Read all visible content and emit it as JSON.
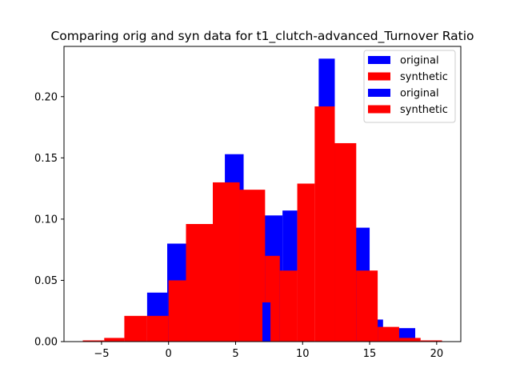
{
  "chart_data": {
    "type": "bar",
    "title": "Comparing orig and syn data for t1_clutch-advanced_Turnover Ratio",
    "xlabel": "",
    "ylabel": "",
    "xlim": [
      -7.8,
      21.8
    ],
    "ylim": [
      0,
      0.241
    ],
    "xticks": [
      -5,
      0,
      5,
      10,
      15,
      20
    ],
    "yticks": [
      0.0,
      0.05,
      0.1,
      0.15,
      0.2
    ],
    "ytick_labels": [
      "0.00",
      "0.05",
      "0.10",
      "0.15",
      "0.20"
    ],
    "grid": false,
    "legend": {
      "placement": "top-right",
      "entries": [
        "original",
        "synthetic",
        "original",
        "synthetic"
      ]
    },
    "colors": {
      "original": "#0000ff",
      "synthetic": "#ff0000"
    },
    "series": [
      {
        "name": "original",
        "bins": [
          [
            -3.0,
            -2.5,
            0.01
          ],
          [
            -1.6,
            -0.1,
            0.04
          ],
          [
            -0.1,
            1.4,
            0.08
          ],
          [
            1.4,
            2.9,
            0.091
          ],
          [
            4.2,
            5.6,
            0.153
          ],
          [
            7.0,
            8.5,
            0.103
          ],
          [
            8.5,
            9.6,
            0.107
          ],
          [
            11.2,
            12.4,
            0.231
          ],
          [
            13.9,
            15.0,
            0.093
          ],
          [
            15.5,
            16.0,
            0.018
          ],
          [
            17.0,
            18.4,
            0.011
          ]
        ]
      },
      {
        "name": "synthetic",
        "bins": [
          [
            -6.4,
            -4.8,
            0.001
          ],
          [
            -4.8,
            -3.3,
            0.003
          ],
          [
            -3.3,
            -1.6,
            0.021
          ],
          [
            -1.6,
            0.0,
            0.021
          ],
          [
            0.0,
            1.3,
            0.05
          ],
          [
            1.3,
            3.3,
            0.096
          ],
          [
            3.3,
            5.3,
            0.13
          ],
          [
            5.3,
            7.2,
            0.124
          ],
          [
            7.2,
            8.3,
            0.07
          ],
          [
            8.3,
            9.6,
            0.058
          ],
          [
            9.6,
            10.9,
            0.129
          ],
          [
            10.9,
            12.4,
            0.192
          ],
          [
            12.4,
            14.0,
            0.162
          ],
          [
            14.0,
            15.6,
            0.058
          ],
          [
            15.6,
            17.2,
            0.012
          ],
          [
            17.2,
            18.8,
            0.003
          ],
          [
            18.8,
            20.4,
            0.001
          ]
        ]
      },
      {
        "name": "original",
        "bins": [
          [
            7.0,
            7.6,
            0.032
          ]
        ]
      }
    ]
  }
}
